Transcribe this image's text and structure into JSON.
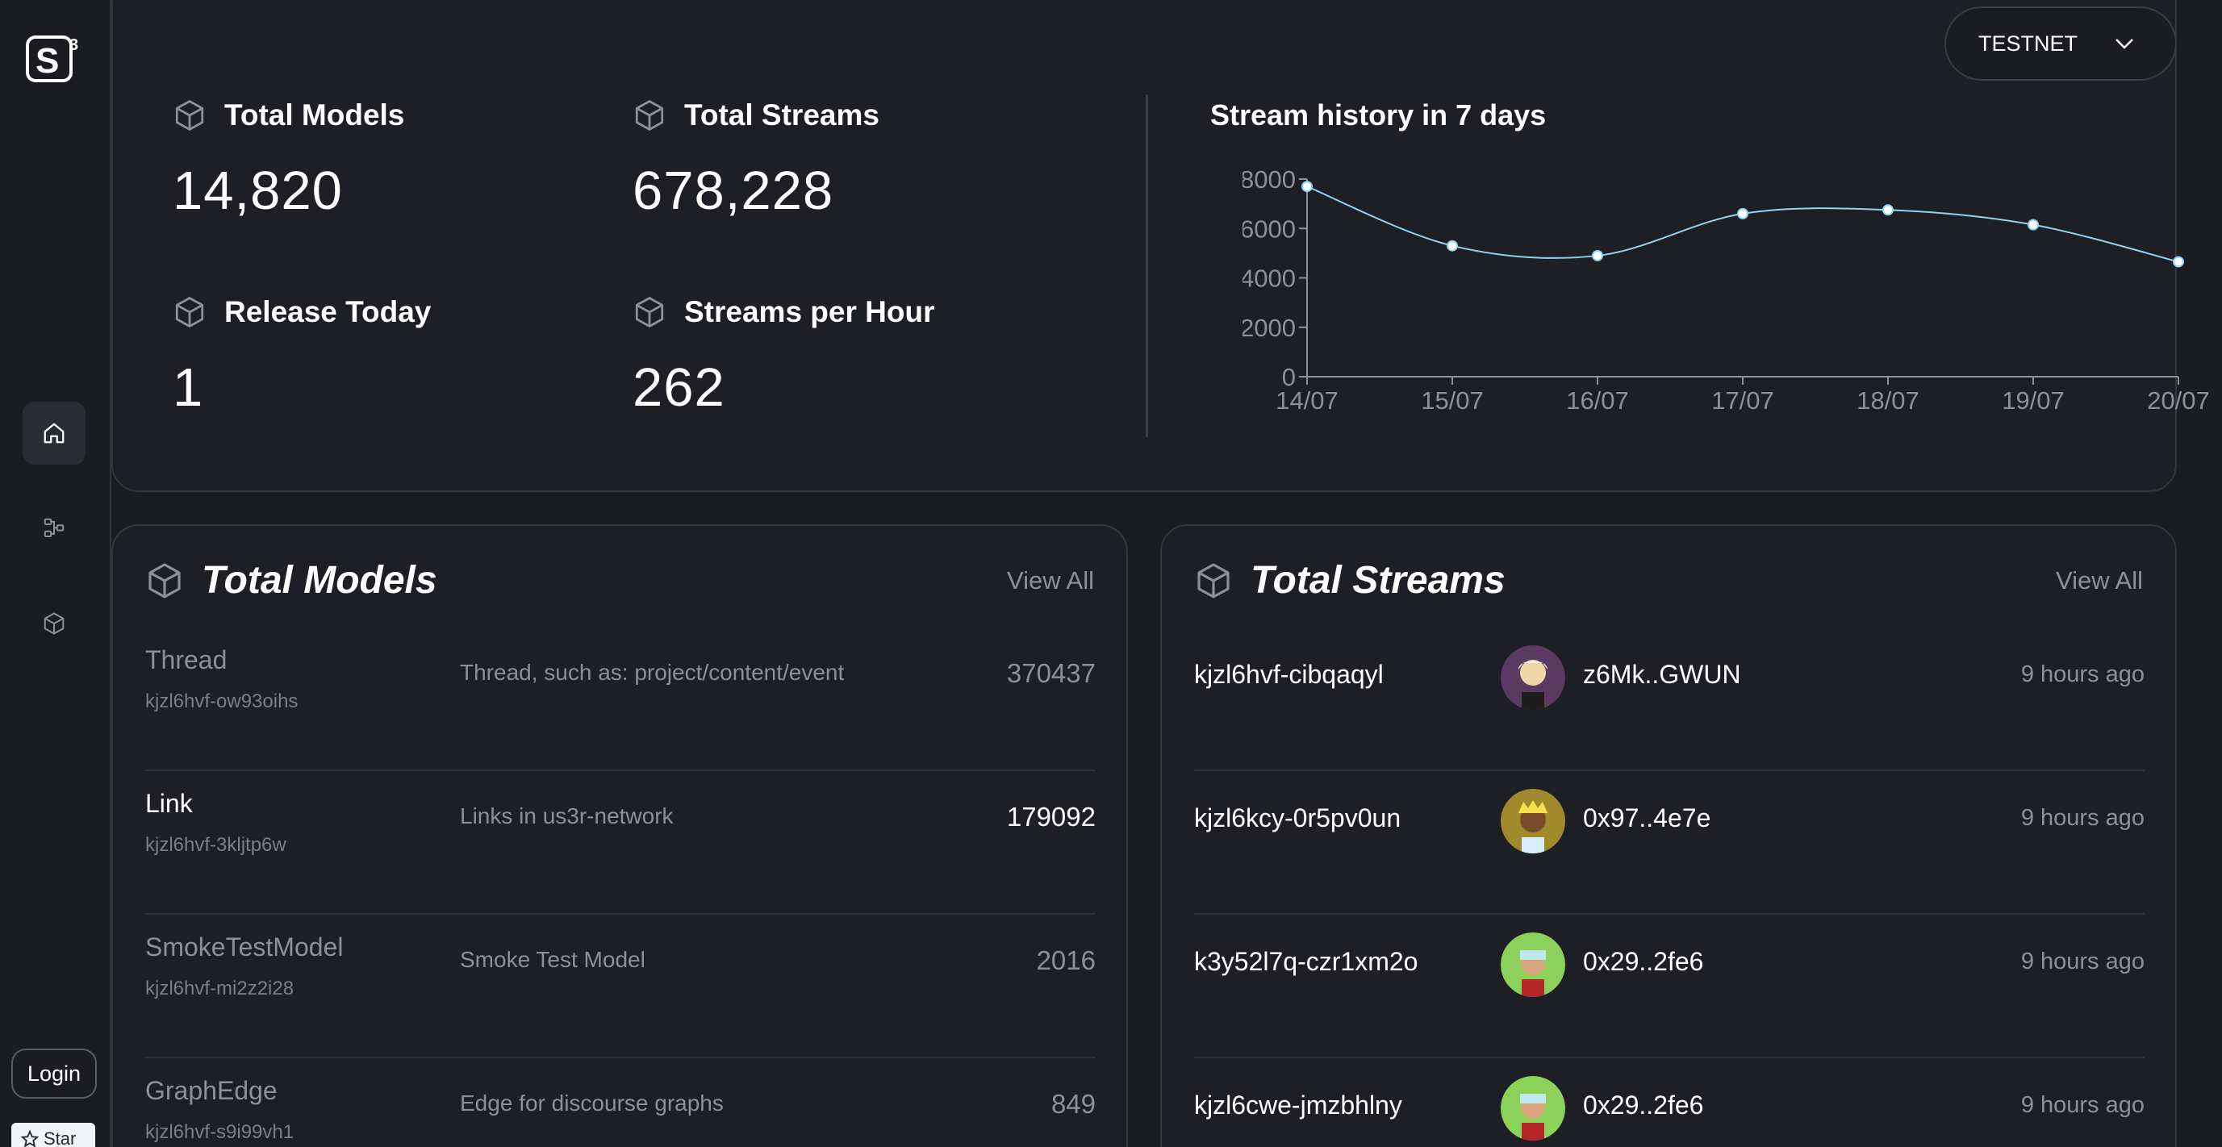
{
  "app": {
    "logo_text": "S",
    "logo_sup": "3"
  },
  "network": {
    "selected": "TESTNET"
  },
  "sidebar": {
    "items": [
      {
        "name": "home",
        "icon": "home-icon",
        "active": true
      },
      {
        "name": "streams",
        "icon": "streams-icon",
        "active": false
      },
      {
        "name": "models",
        "icon": "cube-icon",
        "active": false
      }
    ],
    "login_label": "Login",
    "star_label": "Star"
  },
  "stats": {
    "total_models": {
      "label": "Total Models",
      "value": "14,820"
    },
    "total_streams": {
      "label": "Total Streams",
      "value": "678,228"
    },
    "release_today": {
      "label": "Release Today",
      "value": "1"
    },
    "streams_per_hour": {
      "label": "Streams per Hour",
      "value": "262"
    }
  },
  "chart_data": {
    "type": "line",
    "title": "Stream history in 7 days",
    "categories": [
      "14/07",
      "15/07",
      "16/07",
      "17/07",
      "18/07",
      "19/07",
      "20/07"
    ],
    "values": [
      7700,
      5300,
      4900,
      6600,
      6750,
      6150,
      4650
    ],
    "ylim": [
      0,
      8000
    ],
    "yticks": [
      0,
      2000,
      4000,
      6000,
      8000
    ],
    "color": "#8fd3f4",
    "grid": false
  },
  "models_card": {
    "title": "Total Models",
    "view_all": "View All",
    "rows": [
      {
        "name": "Thread",
        "id": "kjzl6hvf-ow93oihs",
        "desc": "Thread, such as: project/content/event",
        "count": "370437"
      },
      {
        "name": "Link",
        "id": "kjzl6hvf-3kljtp6w",
        "desc": "Links in us3r-network",
        "count": "179092"
      },
      {
        "name": "SmokeTestModel",
        "id": "kjzl6hvf-mi2z2i28",
        "desc": "Smoke Test Model",
        "count": "2016"
      },
      {
        "name": "GraphEdge",
        "id": "kjzl6hvf-s9i99vh1",
        "desc": "Edge for discourse graphs",
        "count": "849"
      }
    ]
  },
  "streams_card": {
    "title": "Total Streams",
    "view_all": "View All",
    "rows": [
      {
        "id": "kjzl6hvf-cibqaqyl",
        "owner": "z6Mk..GWUN",
        "time": "9 hours ago",
        "avatar": "avatar-purple"
      },
      {
        "id": "kjzl6kcy-0r5pv0un",
        "owner": "0x97..4e7e",
        "time": "9 hours ago",
        "avatar": "avatar-gold"
      },
      {
        "id": "k3y52l7q-czr1xm2o",
        "owner": "0x29..2fe6",
        "time": "9 hours ago",
        "avatar": "avatar-green"
      },
      {
        "id": "kjzl6cwe-jmzbhlny",
        "owner": "0x29..2fe6",
        "time": "9 hours ago",
        "avatar": "avatar-green"
      }
    ]
  }
}
